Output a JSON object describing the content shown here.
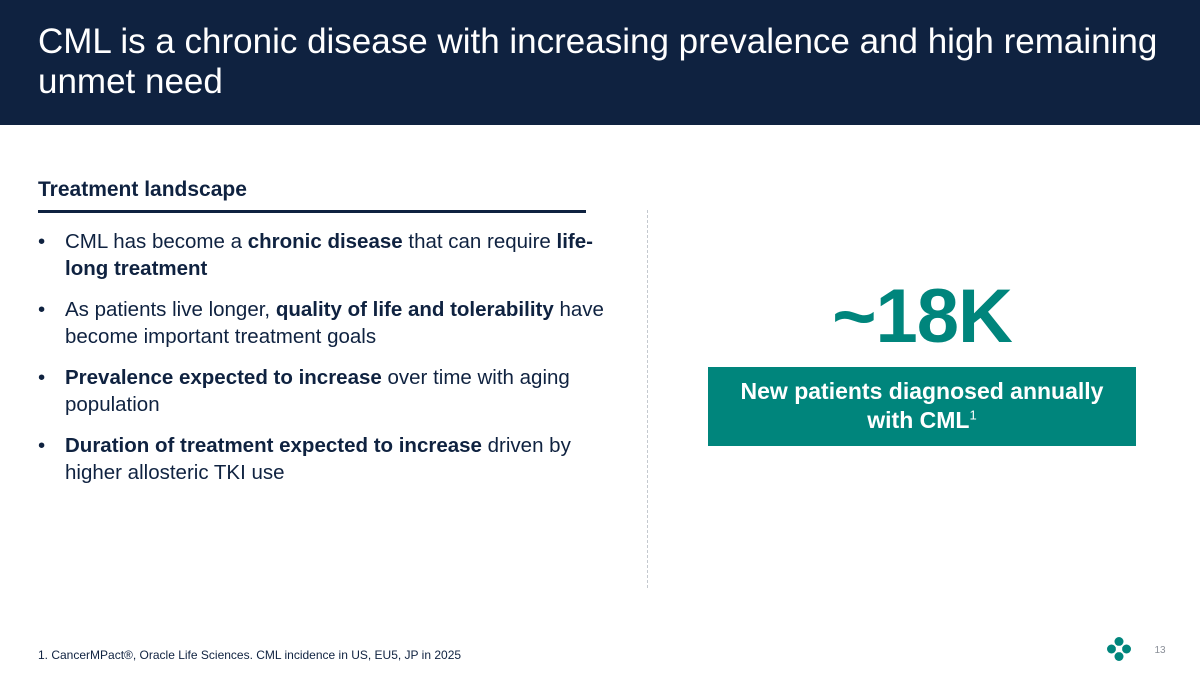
{
  "slide": {
    "title": "CML is a chronic disease with increasing prevalence and high remaining unmet need",
    "page_number": "13"
  },
  "treatment_landscape": {
    "heading": "Treatment landscape",
    "bullets": [
      {
        "segments": [
          {
            "text": "CML has become a ",
            "bold": false
          },
          {
            "text": "chronic disease",
            "bold": true
          },
          {
            "text": " that can require ",
            "bold": false
          },
          {
            "text": "life-long treatment",
            "bold": true
          }
        ]
      },
      {
        "segments": [
          {
            "text": "As patients live longer, ",
            "bold": false
          },
          {
            "text": "quality of life and tolerability",
            "bold": true
          },
          {
            "text": " have become important treatment goals",
            "bold": false
          }
        ]
      },
      {
        "segments": [
          {
            "text": "Prevalence expected to increase",
            "bold": true
          },
          {
            "text": " over time with aging population",
            "bold": false
          }
        ]
      },
      {
        "segments": [
          {
            "text": "Duration of treatment expected to increase",
            "bold": true
          },
          {
            "text": " driven by higher allosteric TKI use",
            "bold": false
          }
        ]
      }
    ]
  },
  "stat": {
    "value": "~18K",
    "label_line1": "New patients diagnosed annually",
    "label_line2": "with CML",
    "footnote_ref": "1"
  },
  "footnote": {
    "text": "1. CancerMPact®, Oracle Life Sciences. CML incidence in US, EU5, JP in 2025"
  },
  "colors": {
    "header_bg": "#0f2240",
    "accent_teal": "#00857c",
    "text_navy": "#0f2240"
  },
  "icons": {
    "brand_logo": "brand-logo-icon"
  }
}
